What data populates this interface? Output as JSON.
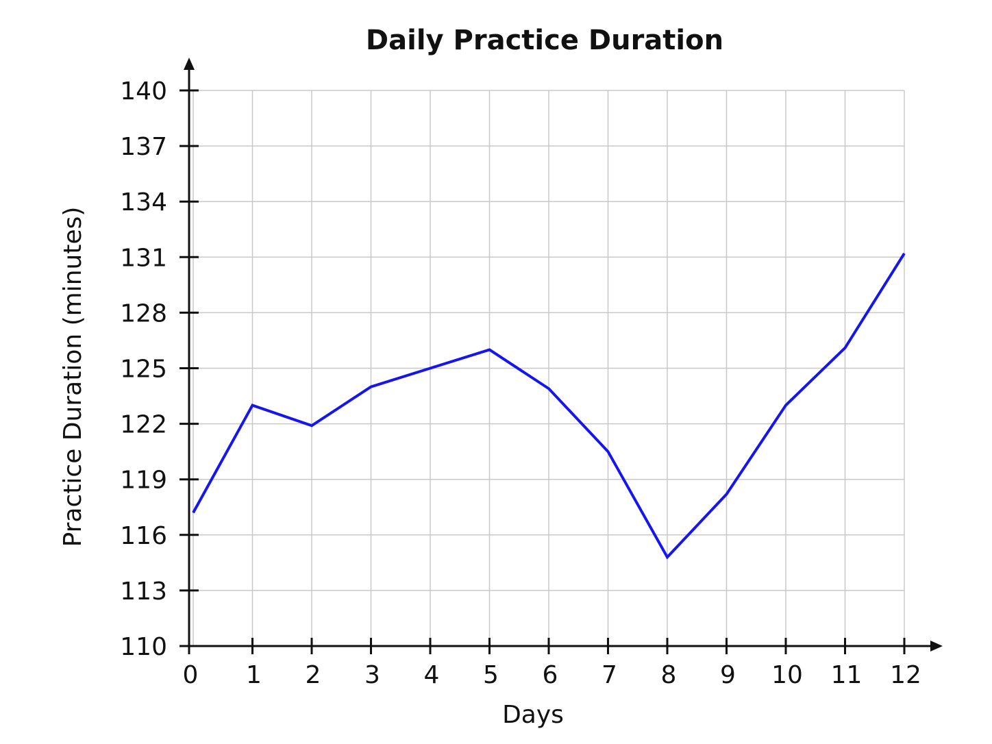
{
  "chart_data": {
    "type": "line",
    "title": "Daily Practice Duration",
    "xlabel": "Days",
    "ylabel": "Practice Duration (minutes)",
    "x_ticks": [
      "0",
      "1",
      "2",
      "3",
      "4",
      "5",
      "6",
      "7",
      "8",
      "9",
      "10",
      "11",
      "12"
    ],
    "y_ticks": [
      "110",
      "113",
      "116",
      "119",
      "122",
      "125",
      "128",
      "131",
      "134",
      "137",
      "140"
    ],
    "xlim": [
      0,
      12
    ],
    "ylim": [
      110,
      140
    ],
    "grid": true,
    "series": [
      {
        "color": "#1515f0",
        "x": [
          0,
          1,
          2,
          3,
          4,
          5,
          6,
          7,
          8,
          9,
          10,
          11,
          12
        ],
        "y": [
          117.2,
          123.0,
          121.9,
          124.0,
          125.0,
          126.0,
          123.9,
          120.5,
          114.8,
          118.2,
          123.0,
          126.1,
          131.2
        ]
      }
    ]
  }
}
